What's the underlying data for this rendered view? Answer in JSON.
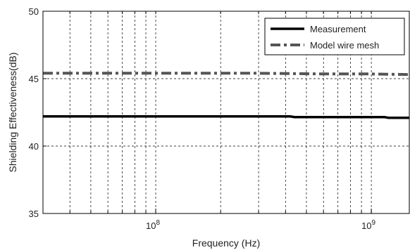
{
  "chart_data": {
    "type": "line",
    "xlabel": "Frequency (Hz)",
    "ylabel": "Shielding Effectiveness(dB)",
    "xscale": "log",
    "xlim": [
      30000000,
      1500000000
    ],
    "ylim": [
      35,
      50
    ],
    "grid": true,
    "grid_style": "dashed",
    "legend_position": "top-right",
    "x_ticks": [
      {
        "value": 100000000,
        "base": "10",
        "exp": "8"
      },
      {
        "value": 1000000000,
        "base": "10",
        "exp": "9"
      }
    ],
    "y_ticks": [
      35,
      40,
      45,
      50
    ],
    "series": [
      {
        "name": "Measurement",
        "color": "#000000",
        "style": "solid",
        "x": [
          30000000,
          100000000,
          300000000,
          420000000,
          440000000,
          1000000000,
          1150000000,
          1200000000,
          1500000000
        ],
        "y": [
          42.2,
          42.2,
          42.2,
          42.2,
          42.15,
          42.15,
          42.15,
          42.1,
          42.1
        ]
      },
      {
        "name": "Model wire mesh",
        "color": "#555555",
        "style": "dash-dot",
        "x": [
          30000000,
          100000000,
          300000000,
          600000000,
          1000000000,
          1500000000
        ],
        "y": [
          45.4,
          45.4,
          45.4,
          45.35,
          45.35,
          45.3
        ]
      }
    ]
  }
}
